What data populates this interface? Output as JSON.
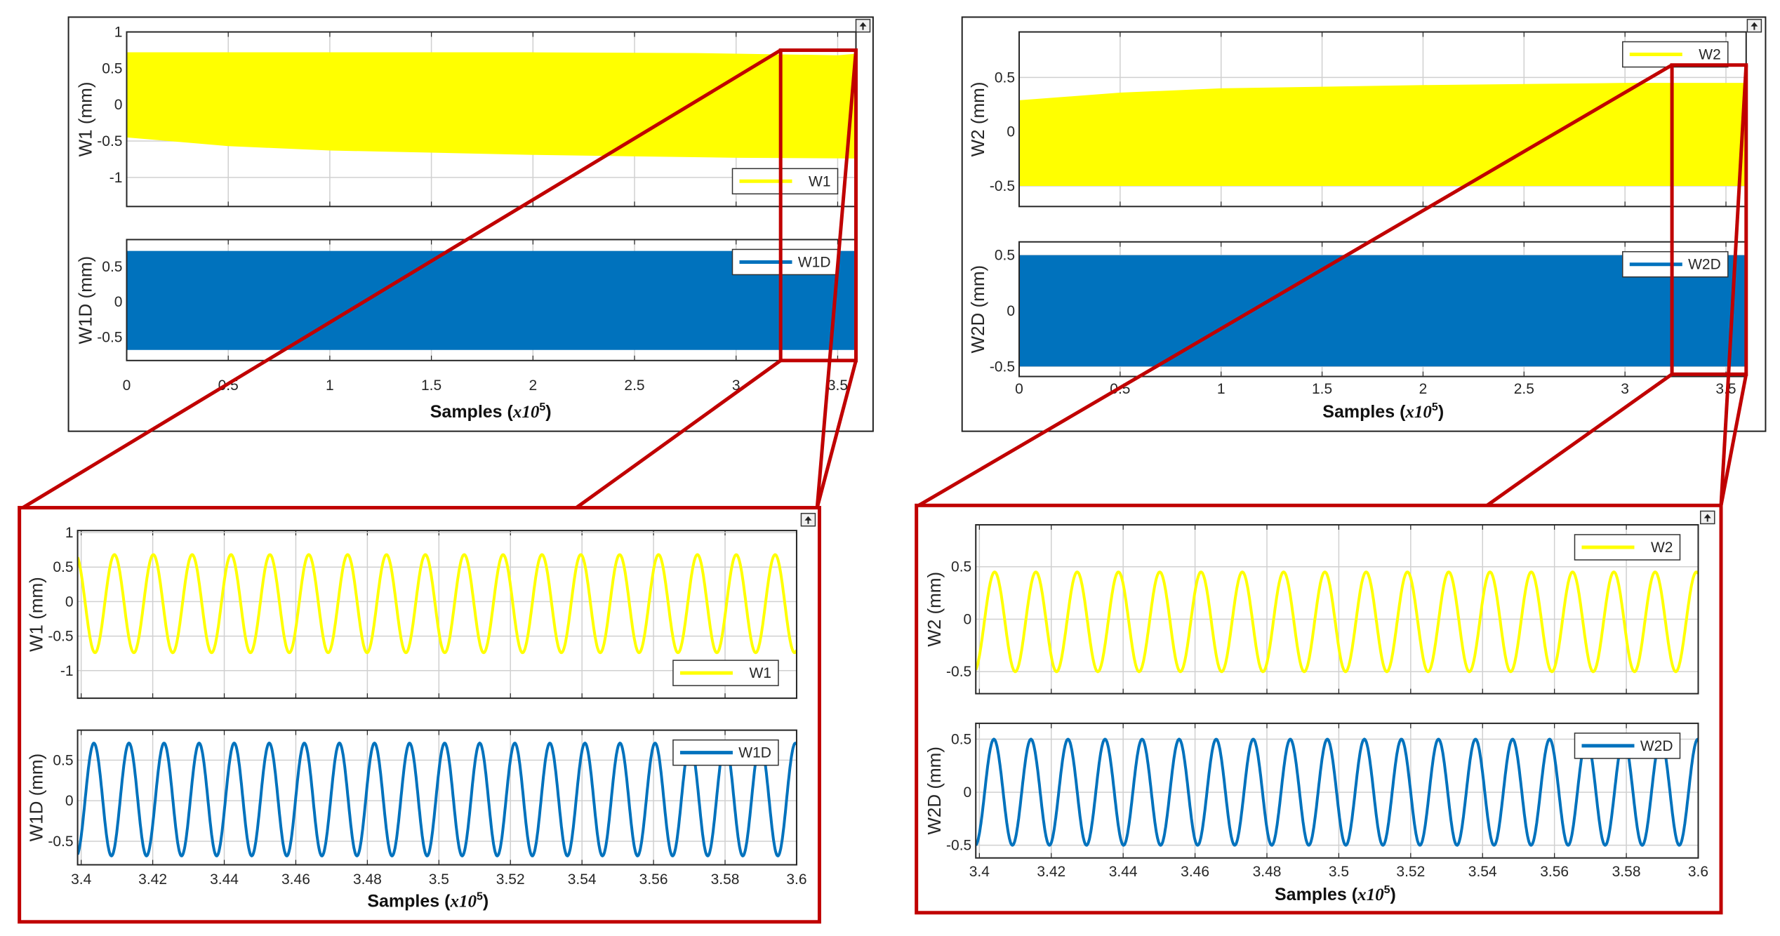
{
  "colors": {
    "yellow": "#ffff00",
    "blue": "#0072bd",
    "zoom_frame": "#c00000",
    "grid": "#d0d0d0",
    "axis": "#262626"
  },
  "icons": {
    "figure_corner": "undock-arrow-icon"
  },
  "chart_data": [
    {
      "panel": "overview-left",
      "type": "line",
      "xlabel": "Samples",
      "xscale_base": "x10",
      "xscale_exponent": "5",
      "xlim": [
        0,
        3.59
      ],
      "xticks": [
        0,
        0.5,
        1,
        1.5,
        2,
        2.5,
        3,
        3.5
      ],
      "zoom_region": {
        "x": [
          3.2,
          3.6
        ]
      },
      "subplots": [
        {
          "ylabel": "W1 (mm)",
          "legend": "W1",
          "legend_position": "southeast",
          "color": "#ffff00",
          "ylim": [
            -1.4,
            1.0
          ],
          "yticks": [
            -1,
            -0.5,
            0,
            0.5,
            1
          ],
          "envelope_upper": [
            [
              0,
              0.72
            ],
            [
              1,
              0.72
            ],
            [
              2,
              0.72
            ],
            [
              2.8,
              0.71
            ],
            [
              3.5,
              0.68
            ],
            [
              3.59,
              0.7
            ]
          ],
          "envelope_lower": [
            [
              0,
              -0.45
            ],
            [
              0.5,
              -0.57
            ],
            [
              1,
              -0.63
            ],
            [
              2,
              -0.69
            ],
            [
              3,
              -0.73
            ],
            [
              3.59,
              -0.74
            ]
          ]
        },
        {
          "ylabel": "W1D (mm)",
          "legend": "W1D",
          "legend_position": "northeast",
          "color": "#0072bd",
          "ylim": [
            -0.83,
            0.88
          ],
          "yticks": [
            -0.5,
            0,
            0.5
          ],
          "envelope_upper": [
            [
              0,
              0.72
            ],
            [
              3.59,
              0.72
            ]
          ],
          "envelope_lower": [
            [
              0,
              -0.68
            ],
            [
              3.59,
              -0.68
            ]
          ]
        }
      ]
    },
    {
      "panel": "overview-right",
      "type": "line",
      "xlabel": "Samples",
      "xscale_base": "x10",
      "xscale_exponent": "5",
      "xlim": [
        0,
        3.6
      ],
      "xticks": [
        0,
        0.5,
        1,
        1.5,
        2,
        2.5,
        3,
        3.5
      ],
      "zoom_region": {
        "x": [
          3.2,
          3.6
        ]
      },
      "subplots": [
        {
          "ylabel": "W2 (mm)",
          "legend": "W2",
          "legend_position": "northeast",
          "color": "#ffff00",
          "ylim": [
            -0.69,
            0.92
          ],
          "yticks": [
            -0.5,
            0,
            0.5
          ],
          "envelope_upper": [
            [
              0,
              0.29
            ],
            [
              0.5,
              0.36
            ],
            [
              1,
              0.4
            ],
            [
              2,
              0.43
            ],
            [
              3,
              0.45
            ],
            [
              3.6,
              0.45
            ]
          ],
          "envelope_lower": [
            [
              0,
              -0.5
            ],
            [
              3.6,
              -0.5
            ]
          ]
        },
        {
          "ylabel": "W2D (mm)",
          "legend": "W2D",
          "legend_position": "northeast",
          "color": "#0072bd",
          "ylim": [
            -0.59,
            0.62
          ],
          "yticks": [
            -0.5,
            0,
            0.5
          ],
          "envelope_upper": [
            [
              0,
              0.5
            ],
            [
              3.6,
              0.5
            ]
          ],
          "envelope_lower": [
            [
              0,
              -0.5
            ],
            [
              3.6,
              -0.5
            ]
          ]
        }
      ]
    },
    {
      "panel": "zoom-left",
      "type": "line",
      "xlabel": "Samples",
      "xscale_base": "x10",
      "xscale_exponent": "5",
      "xlim": [
        3.399,
        3.6
      ],
      "xticks": [
        3.4,
        3.42,
        3.44,
        3.46,
        3.48,
        3.5,
        3.52,
        3.54,
        3.56,
        3.58,
        3.6
      ],
      "subplots": [
        {
          "ylabel": "W1 (mm)",
          "legend": "W1",
          "legend_position": "southeast",
          "color": "#ffff00",
          "ylim": [
            -1.4,
            1.03
          ],
          "yticks": [
            -1,
            -0.5,
            0,
            0.5,
            1
          ],
          "peak": 0.68,
          "trough": -0.74,
          "cycles": 18.5
        },
        {
          "ylabel": "W1D (mm)",
          "legend": "W1D",
          "legend_position": "northeast",
          "color": "#0072bd",
          "ylim": [
            -0.79,
            0.87
          ],
          "yticks": [
            -0.5,
            0,
            0.5
          ],
          "peak": 0.71,
          "trough": -0.68,
          "cycles": 20.5
        }
      ]
    },
    {
      "panel": "zoom-right",
      "type": "line",
      "xlabel": "Samples",
      "xscale_base": "x10",
      "xscale_exponent": "5",
      "xlim": [
        3.399,
        3.6
      ],
      "xticks": [
        3.4,
        3.42,
        3.44,
        3.46,
        3.48,
        3.5,
        3.52,
        3.54,
        3.56,
        3.58,
        3.6
      ],
      "subplots": [
        {
          "ylabel": "W2 (mm)",
          "legend": "W2",
          "legend_position": "northeast",
          "color": "#ffff00",
          "ylim": [
            -0.71,
            0.9
          ],
          "yticks": [
            -0.5,
            0,
            0.5
          ],
          "peak": 0.45,
          "trough": -0.5,
          "cycles": 17.5
        },
        {
          "ylabel": "W2D (mm)",
          "legend": "W2D",
          "legend_position": "northeast",
          "color": "#0072bd",
          "ylim": [
            -0.62,
            0.65
          ],
          "yticks": [
            -0.5,
            0,
            0.5
          ],
          "peak": 0.5,
          "trough": -0.5,
          "cycles": 19.5
        }
      ]
    }
  ]
}
